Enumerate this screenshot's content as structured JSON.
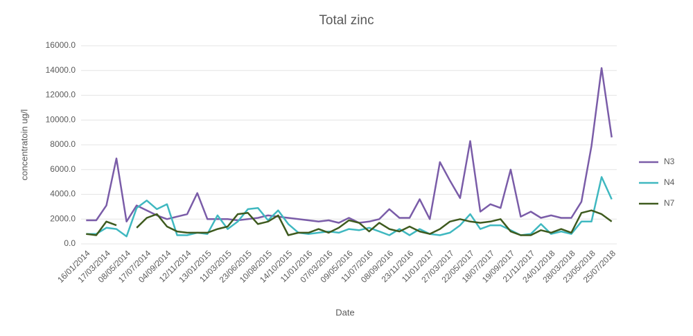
{
  "chart_data": {
    "type": "line",
    "title": "Total zinc",
    "x_label": "Date",
    "y_label": "concentratoin ug/l",
    "categories": [
      "16/01/2014",
      null,
      "17/03/2014",
      null,
      "08/05/2014",
      null,
      "17/07/2014",
      null,
      "04/09/2014",
      null,
      "12/11/2014",
      null,
      "13/01/2015",
      null,
      "11/03/2015",
      null,
      "23/06/2015",
      null,
      "10/08/2015",
      null,
      "14/10/2015",
      null,
      "11/01/2016",
      null,
      "07/03/2016",
      null,
      "09/05/2016",
      null,
      "11/07/2016",
      null,
      "08/09/2016",
      null,
      "23/11/2016",
      null,
      "11/01/2017",
      null,
      "27/03/2017",
      null,
      "22/05/2017",
      null,
      "18/07/2017",
      null,
      "19/09/2017",
      null,
      "21/11/2017",
      null,
      "24/01/2018",
      null,
      "28/03/2018",
      null,
      "23/05/2018",
      null,
      "25/07/2018"
    ],
    "series": [
      {
        "name": "N3",
        "color": "#7a5ca8",
        "values": [
          1900,
          1900,
          3100,
          6900,
          1800,
          3100,
          2700,
          2300,
          2000,
          2200,
          2400,
          4100,
          2000,
          2000,
          2000,
          1900,
          2000,
          2100,
          2300,
          2200,
          2100,
          2000,
          1900,
          1800,
          1900,
          1700,
          2100,
          1700,
          1800,
          2000,
          2800,
          2100,
          2100,
          3600,
          2000,
          6600,
          5100,
          3700,
          8300,
          2600,
          3200,
          2900,
          6000,
          2200,
          2600,
          2100,
          2300,
          2100,
          2100,
          3400,
          7900,
          14200,
          8600
        ]
      },
      {
        "name": "N4",
        "color": "#3fb8c0",
        "values": [
          800,
          800,
          1300,
          1200,
          600,
          2900,
          3500,
          2800,
          3200,
          700,
          700,
          900,
          800,
          2300,
          1200,
          1800,
          2800,
          2900,
          1900,
          2700,
          1600,
          900,
          800,
          900,
          1000,
          900,
          1200,
          1100,
          1300,
          1000,
          700,
          1200,
          700,
          1200,
          800,
          700,
          900,
          1500,
          2400,
          1200,
          1500,
          1500,
          1100,
          700,
          800,
          1600,
          800,
          1000,
          800,
          1800,
          1800,
          5400,
          3600
        ]
      },
      {
        "name": "N7",
        "color": "#3e5a1e",
        "values": [
          800,
          700,
          1800,
          1500,
          null,
          1300,
          2100,
          2400,
          1400,
          1000,
          900,
          900,
          900,
          1200,
          1400,
          2400,
          2500,
          1600,
          1800,
          2300,
          700,
          900,
          900,
          1200,
          900,
          1300,
          1900,
          1700,
          1000,
          1700,
          1200,
          1000,
          1400,
          1000,
          800,
          1200,
          1800,
          2000,
          1800,
          1700,
          1800,
          2000,
          1000,
          700,
          700,
          1100,
          900,
          1200,
          900,
          2500,
          2700,
          2400,
          1800
        ]
      }
    ],
    "ylim": [
      0,
      16000
    ],
    "yticks": [
      {
        "value": 0,
        "label": "0.0"
      },
      {
        "value": 2000,
        "label": "2000.0"
      },
      {
        "value": 4000,
        "label": "4000.0"
      },
      {
        "value": 6000,
        "label": "6000.0"
      },
      {
        "value": 8000,
        "label": "8000.0"
      },
      {
        "value": 10000,
        "label": "10000.0"
      },
      {
        "value": 12000,
        "label": "12000.0"
      },
      {
        "value": 14000,
        "label": "14000.0"
      },
      {
        "value": 16000,
        "label": "16000.0"
      }
    ],
    "grid": true,
    "legend": "right"
  }
}
